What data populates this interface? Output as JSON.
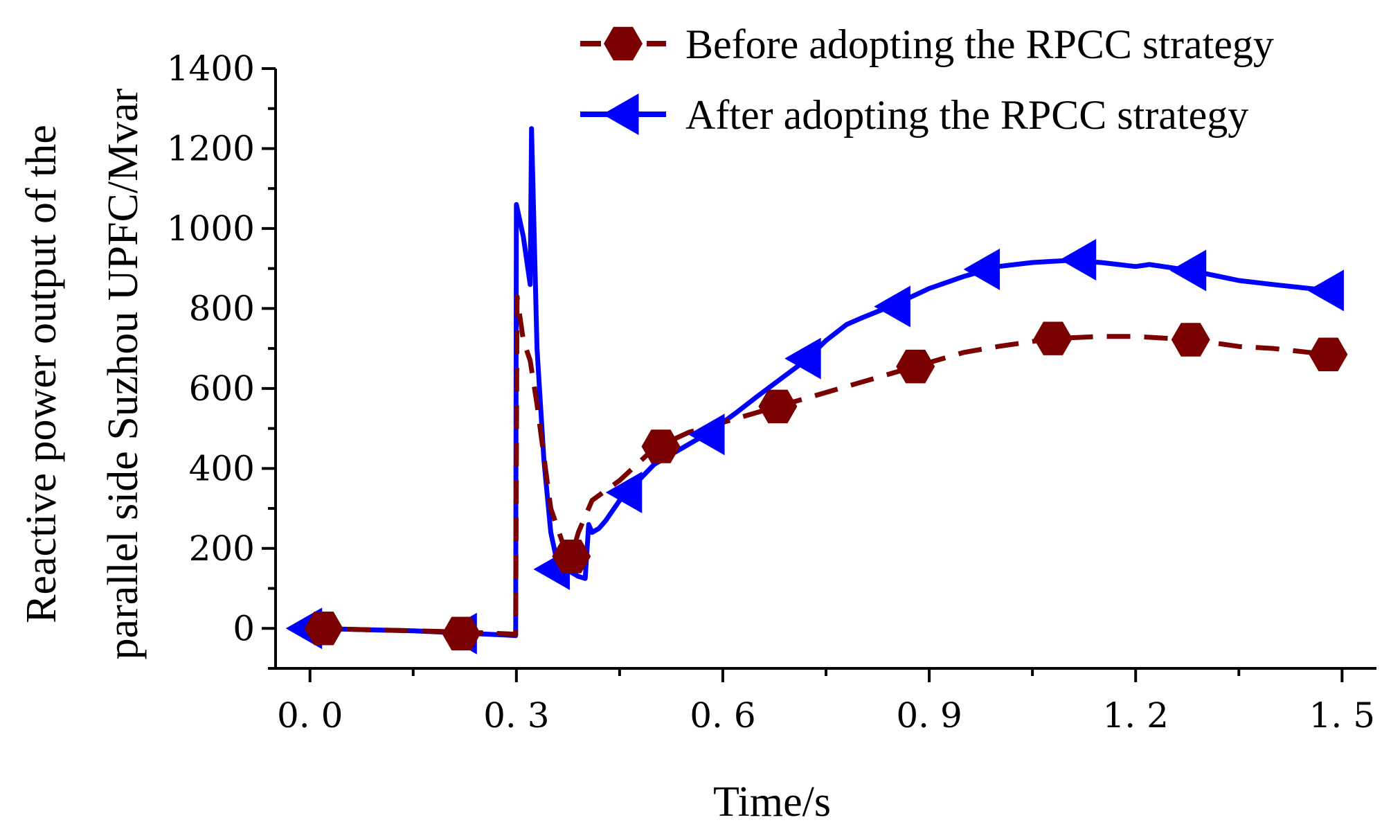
{
  "chart_data": {
    "type": "line",
    "title": "",
    "xlabel": "Time/s",
    "ylabel_lines": [
      "Reactive power output of the",
      "parallel side Suzhou UPFC/Mvar"
    ],
    "xlim": [
      -0.05,
      1.55
    ],
    "ylim": [
      -100,
      1400
    ],
    "xticks": [
      0.0,
      0.3,
      0.6,
      0.9,
      1.2,
      1.5
    ],
    "xtick_labels": [
      "0. 0",
      "0. 3",
      "0. 6",
      "0. 9",
      "1. 2",
      "1. 5"
    ],
    "yticks": [
      0,
      200,
      400,
      600,
      800,
      1000,
      1200,
      1400
    ],
    "ytick_labels": [
      "0",
      "200",
      "400",
      "600",
      "800",
      "1000",
      "1200",
      "1400"
    ],
    "legend_position": "top-right",
    "series": [
      {
        "name": "Before adopting the RPCC strategy",
        "color": "#7b0000",
        "dash": "dashed",
        "marker": "hexagon",
        "x": [
          0.0,
          0.05,
          0.1,
          0.15,
          0.2,
          0.25,
          0.29,
          0.299,
          0.301,
          0.31,
          0.32,
          0.33,
          0.35,
          0.37,
          0.38,
          0.39,
          0.4,
          0.41,
          0.45,
          0.5,
          0.55,
          0.6,
          0.68,
          0.75,
          0.8,
          0.88,
          0.95,
          1.0,
          1.08,
          1.15,
          1.2,
          1.28,
          1.35,
          1.4,
          1.48
        ],
        "y": [
          0,
          -2,
          -4,
          -6,
          -8,
          -11,
          -14,
          -15,
          830,
          720,
          670,
          560,
          300,
          200,
          180,
          240,
          280,
          320,
          370,
          450,
          490,
          515,
          555,
          590,
          615,
          655,
          690,
          705,
          725,
          730,
          730,
          722,
          705,
          700,
          685
        ],
        "marker_x": [
          0.02,
          0.22,
          0.38,
          0.51,
          0.68,
          0.88,
          1.08,
          1.28,
          1.48
        ],
        "marker_y": [
          0,
          -13,
          180,
          455,
          555,
          655,
          725,
          722,
          685
        ]
      },
      {
        "name": "After adopting the RPCC strategy",
        "color": "#0000ff",
        "dash": "solid",
        "marker": "triangle-left",
        "x": [
          -0.01,
          0.05,
          0.1,
          0.15,
          0.2,
          0.25,
          0.29,
          0.299,
          0.3,
          0.31,
          0.32,
          0.322,
          0.33,
          0.34,
          0.35,
          0.36,
          0.39,
          0.4,
          0.405,
          0.41,
          0.42,
          0.43,
          0.45,
          0.5,
          0.53,
          0.55,
          0.58,
          0.62,
          0.65,
          0.72,
          0.75,
          0.78,
          0.8,
          0.85,
          0.9,
          0.95,
          1.0,
          1.05,
          1.1,
          1.15,
          1.2,
          1.22,
          1.28,
          1.35,
          1.4,
          1.48,
          1.5
        ],
        "y": [
          0,
          -2,
          -4,
          -6,
          -10,
          -14,
          -17,
          -18,
          1060,
          980,
          860,
          1250,
          700,
          420,
          240,
          160,
          130,
          125,
          260,
          240,
          250,
          270,
          320,
          410,
          440,
          460,
          490,
          540,
          580,
          670,
          720,
          760,
          775,
          810,
          850,
          880,
          905,
          915,
          920,
          915,
          905,
          910,
          895,
          870,
          860,
          845,
          835
        ],
        "marker_x": [
          -0.005,
          0.22,
          0.355,
          0.46,
          0.58,
          0.72,
          0.85,
          0.98,
          1.12,
          1.28,
          1.48
        ],
        "marker_y": [
          0,
          -13,
          148,
          340,
          485,
          675,
          805,
          898,
          922,
          895,
          845
        ]
      }
    ]
  }
}
